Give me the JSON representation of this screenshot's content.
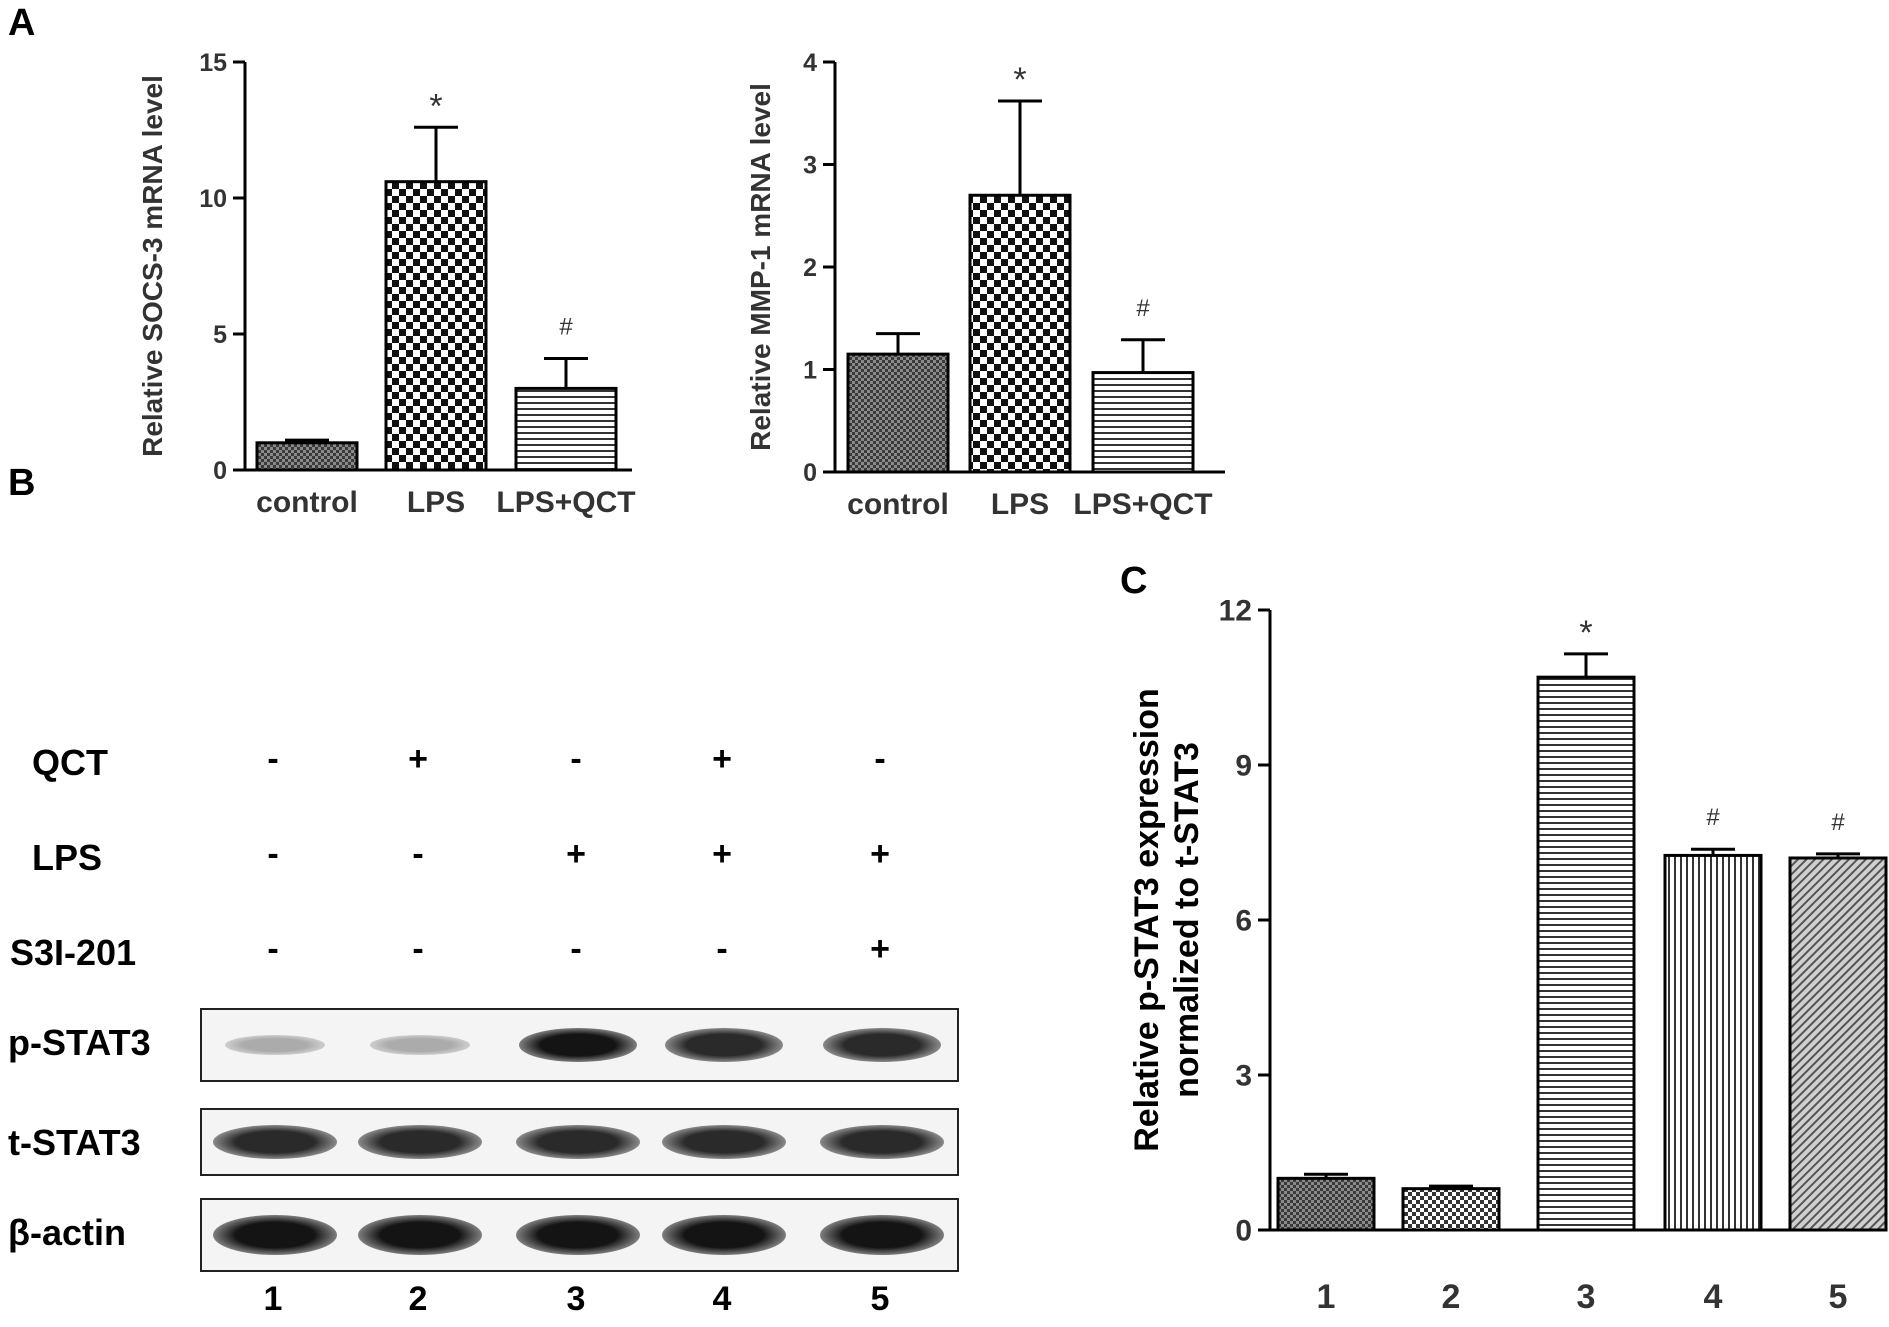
{
  "panels": {
    "a": "A",
    "b": "B",
    "c": "C"
  },
  "chart_data": [
    {
      "id": "socs3",
      "type": "bar",
      "categories": [
        "control",
        "LPS",
        "LPS+QCT"
      ],
      "values": [
        1.0,
        10.6,
        3.0
      ],
      "errors": [
        0.1,
        2.0,
        1.1
      ],
      "annotations": [
        "",
        "*",
        "#"
      ],
      "ylabel": "Relative SOCS-3 mRNA level",
      "ylim": [
        0,
        15
      ],
      "yticks": [
        0,
        5,
        10,
        15
      ],
      "patterns": [
        "fine-check",
        "check",
        "hstripe"
      ]
    },
    {
      "id": "mmp1",
      "type": "bar",
      "categories": [
        "control",
        "LPS",
        "LPS+QCT"
      ],
      "values": [
        1.15,
        2.7,
        0.97
      ],
      "errors": [
        0.2,
        0.92,
        0.32
      ],
      "annotations": [
        "",
        "*",
        "#"
      ],
      "ylabel": "Relative MMP-1 mRNA level",
      "ylim": [
        0,
        4
      ],
      "yticks": [
        0,
        1,
        2,
        3,
        4
      ],
      "patterns": [
        "fine-check",
        "check",
        "hstripe"
      ]
    },
    {
      "id": "pstat3",
      "type": "bar",
      "categories": [
        "1",
        "2",
        "3",
        "4",
        "5"
      ],
      "values": [
        1.0,
        0.8,
        10.7,
        7.25,
        7.2
      ],
      "errors": [
        0.08,
        0.05,
        0.45,
        0.12,
        0.08
      ],
      "annotations": [
        "",
        "",
        "*",
        "#",
        "#"
      ],
      "ylabel": "Relative p-STAT3 expression normalized to t-STAT3",
      "ylabel_lines": [
        "Relative p-STAT3 expression",
        "normalized to t-STAT3"
      ],
      "ylim": [
        0,
        12
      ],
      "yticks": [
        0,
        3,
        6,
        9,
        12
      ],
      "patterns": [
        "fine-check",
        "fine-check2",
        "hstripe",
        "vstripe",
        "diag"
      ]
    }
  ],
  "blot": {
    "treatments": [
      {
        "label": "QCT",
        "signs": [
          "-",
          "+",
          "-",
          "+",
          "-"
        ]
      },
      {
        "label": "LPS",
        "signs": [
          "-",
          "-",
          "+",
          "+",
          "+"
        ]
      },
      {
        "label": "S3I-201",
        "signs": [
          "-",
          "-",
          "-",
          "-",
          "+"
        ]
      }
    ],
    "rows": [
      {
        "label": "p-STAT3",
        "intensity": [
          0.3,
          0.3,
          1.0,
          0.9,
          0.9
        ]
      },
      {
        "label": "t-STAT3",
        "intensity": [
          0.9,
          0.9,
          0.9,
          0.9,
          0.9
        ]
      },
      {
        "label": "β-actin",
        "intensity": [
          1.0,
          1.0,
          1.0,
          1.0,
          1.0
        ]
      }
    ],
    "lanes": [
      "1",
      "2",
      "3",
      "4",
      "5"
    ]
  }
}
